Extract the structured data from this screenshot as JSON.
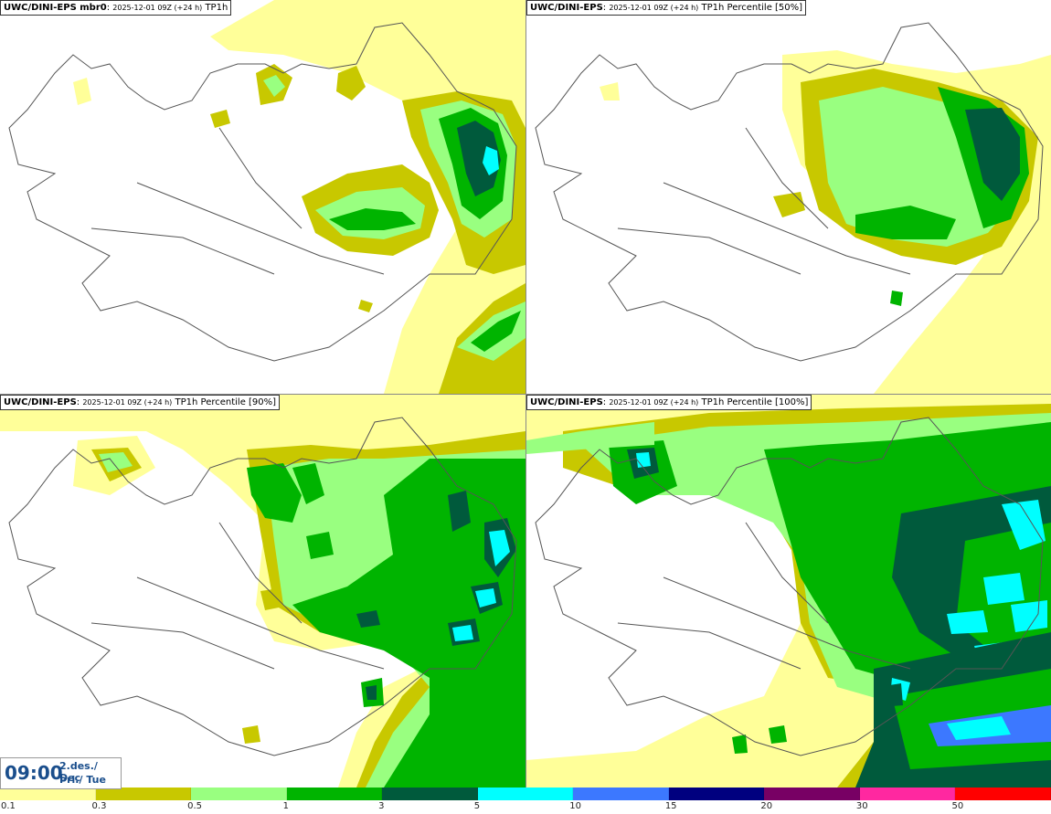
{
  "panels": [
    {
      "model": "UWC/DINI-EPS mbr0",
      "time": "2025-12-01 09Z (+24 h)",
      "field": "TP1h"
    },
    {
      "model": "UWC/DINI-EPS",
      "time": "2025-12-01 09Z (+24 h)",
      "field": "TP1h Percentile [50%]"
    },
    {
      "model": "UWC/DINI-EPS",
      "time": "2025-12-01 09Z (+24 h)",
      "field": "TP1h Percentile [90%]"
    },
    {
      "model": "UWC/DINI-EPS",
      "time": "2025-12-01 09Z (+24 h)",
      "field": "TP1h Percentile [100%]"
    }
  ],
  "valid_time": {
    "time": "09:00",
    "date": "2.des./ Dec",
    "day": "Þri./ Tue"
  },
  "colorbar": {
    "colors": [
      "#ffff99",
      "#c8c800",
      "#99ff80",
      "#00b400",
      "#005a3c",
      "#00ffff",
      "#3c78ff",
      "#00007f",
      "#780064",
      "#ff28a0",
      "#ff0000"
    ],
    "ticks": [
      "0.1",
      "0.3",
      "0.5",
      "1",
      "3",
      "5",
      "10",
      "15",
      "20",
      "30",
      "50"
    ]
  },
  "map_colors": {
    "land": "#ffffff",
    "boundary": "#555555",
    "light": "#ffff99",
    "olive": "#c8c800",
    "lightgreen": "#99ff80",
    "green": "#00b400",
    "darkgreen": "#005a3c",
    "cyan": "#00ffff",
    "blue": "#3c78ff"
  }
}
